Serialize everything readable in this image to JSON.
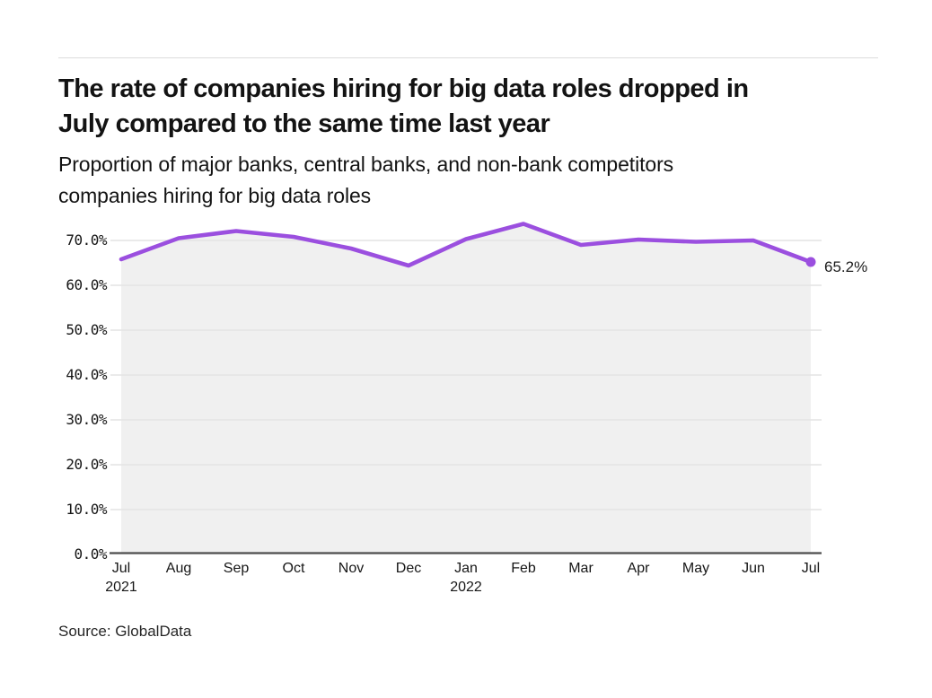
{
  "chart_data": {
    "type": "line",
    "title_lines": [
      "The rate of companies hiring for big data roles dropped in",
      "July compared to the same time last year"
    ],
    "subtitle_lines": [
      "Proportion of major banks, central banks, and non-bank competitors",
      "companies hiring for big data roles"
    ],
    "categories": [
      "Jul",
      "Aug",
      "Sep",
      "Oct",
      "Nov",
      "Dec",
      "Jan",
      "Feb",
      "Mar",
      "Apr",
      "May",
      "Jun",
      "Jul"
    ],
    "year_markers": [
      {
        "index": 0,
        "label": "2021"
      },
      {
        "index": 6,
        "label": "2022"
      }
    ],
    "values": [
      65.8,
      70.5,
      72.1,
      70.8,
      68.2,
      64.4,
      70.3,
      73.7,
      69.0,
      70.2,
      69.7,
      70.0,
      65.2
    ],
    "unit": "%",
    "ylim": [
      0,
      75
    ],
    "yticks": [
      0,
      10,
      20,
      30,
      40,
      50,
      60,
      70
    ],
    "ytick_labels": [
      "0.0%",
      "10.0%",
      "20.0%",
      "30.0%",
      "40.0%",
      "50.0%",
      "60.0%",
      "70.0%"
    ],
    "grid": "horizontal",
    "legend": "none",
    "last_value_label": "65.2%",
    "colors": {
      "line": "#9b4fdf",
      "area_fill": "#f0f0f0",
      "gridline": "#e4e4e4",
      "axis_line": "#4d4d4d",
      "text": "#141414"
    }
  },
  "footer": {
    "source": "Source: GlobalData"
  }
}
